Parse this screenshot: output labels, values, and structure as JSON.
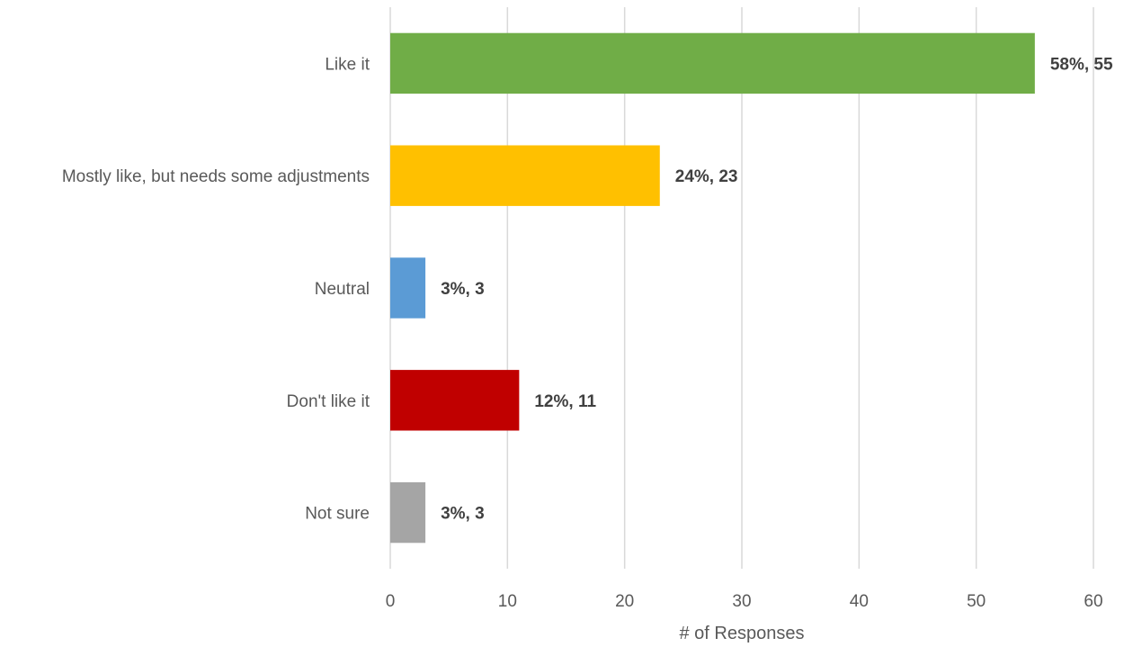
{
  "chart_data": {
    "type": "bar",
    "orientation": "horizontal",
    "categories": [
      "Like it",
      "Mostly like, but needs some adjustments",
      "Neutral",
      "Don't like it",
      "Not sure"
    ],
    "values": [
      55,
      23,
      3,
      11,
      3
    ],
    "data_labels": [
      "58%, 55",
      "24%, 23",
      "3%, 3",
      "12%, 11",
      "3%, 3"
    ],
    "colors": [
      "#70ad47",
      "#ffc000",
      "#5b9bd5",
      "#c00000",
      "#a5a5a5"
    ],
    "xlabel": "# of Responses",
    "ylabel": "",
    "xlim": [
      0,
      60
    ],
    "xticks": [
      0,
      10,
      20,
      30,
      40,
      50,
      60
    ],
    "grid": "vertical",
    "legend": "none"
  }
}
